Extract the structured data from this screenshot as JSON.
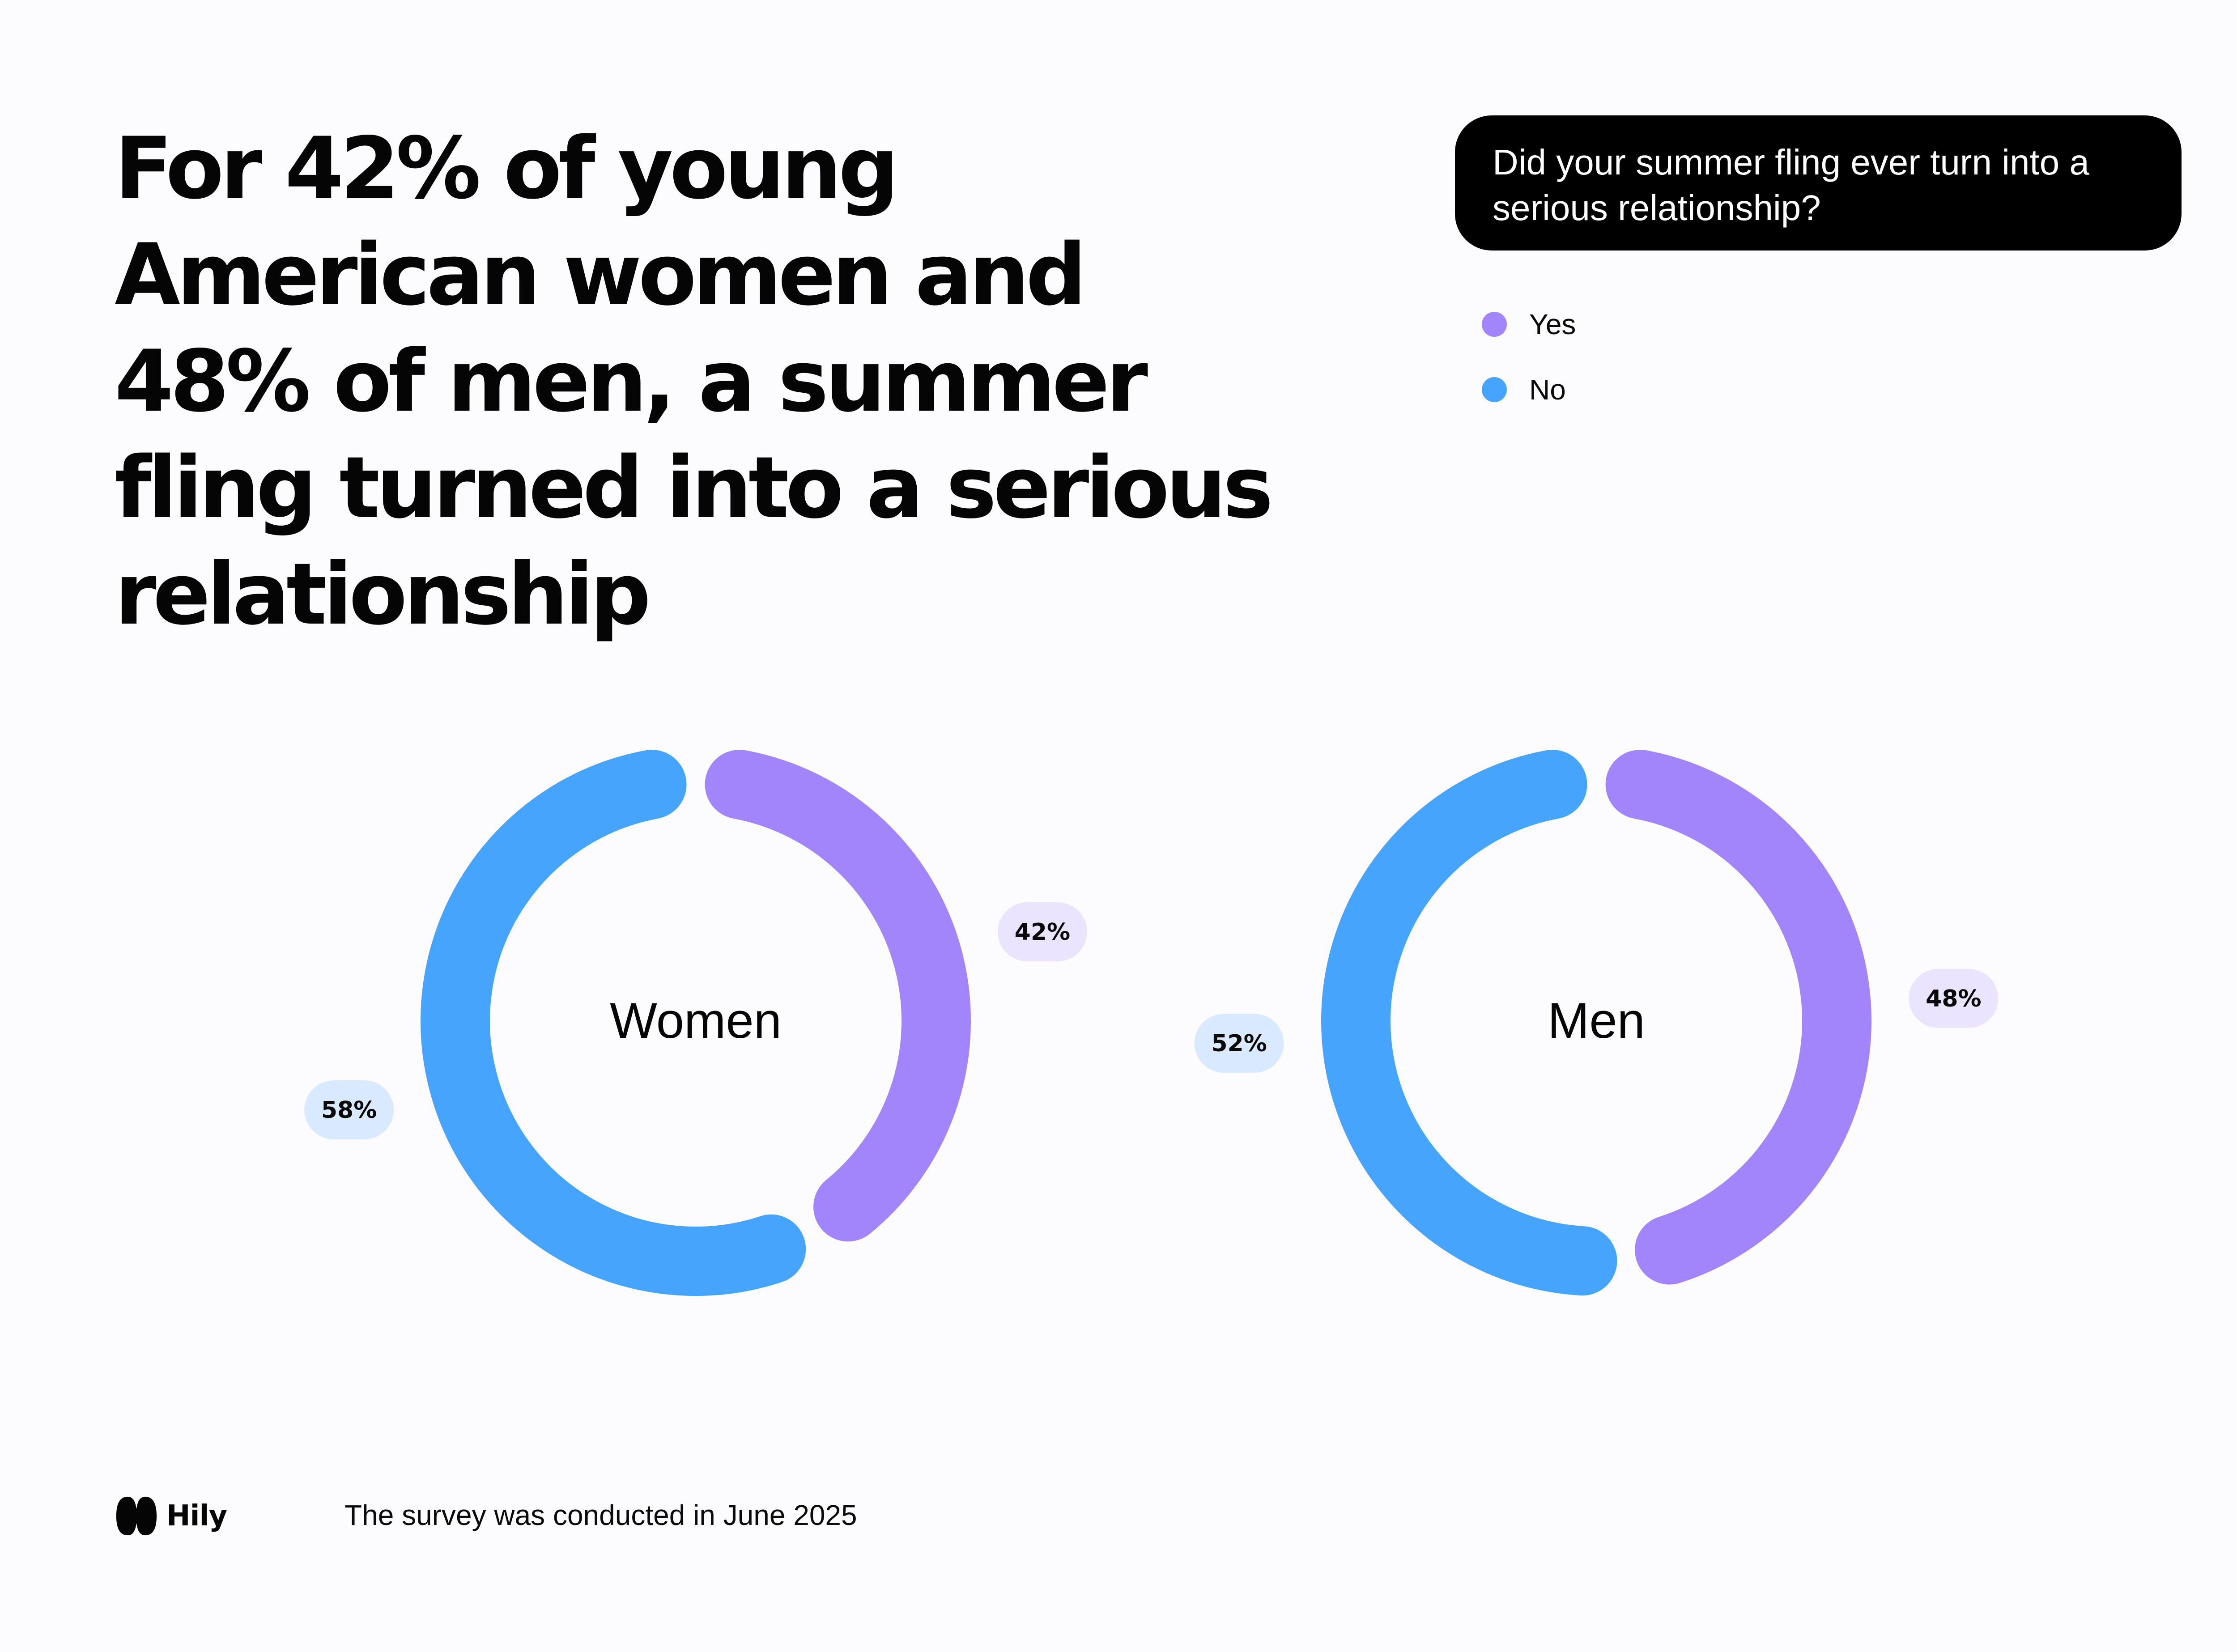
{
  "headline": "For 42% of young American women and 48% of men, a summer fling turned into a serious relationship",
  "question": "Did your summer fling ever turn into a serious relationship?",
  "legend": [
    {
      "label": "Yes",
      "color": "#a285fa"
    },
    {
      "label": "No",
      "color": "#47a4fc"
    }
  ],
  "chart_data": [
    {
      "type": "pie",
      "subtype": "donut",
      "center_label": "Women",
      "categories": [
        "Yes",
        "No"
      ],
      "values": [
        42,
        58
      ],
      "labels": [
        "42%",
        "58%"
      ],
      "colors": [
        "#a285fa",
        "#47a4fc"
      ],
      "label_bg": [
        "#ebe4fe",
        "#daeafe"
      ]
    },
    {
      "type": "pie",
      "subtype": "donut",
      "center_label": "Men",
      "categories": [
        "Yes",
        "No"
      ],
      "values": [
        48,
        52
      ],
      "labels": [
        "48%",
        "52%"
      ],
      "colors": [
        "#a285fa",
        "#47a4fc"
      ],
      "label_bg": [
        "#ebe4fe",
        "#daeafe"
      ]
    }
  ],
  "footer": {
    "logo_text": "Hily",
    "note": "The survey was conducted in June 2025"
  }
}
